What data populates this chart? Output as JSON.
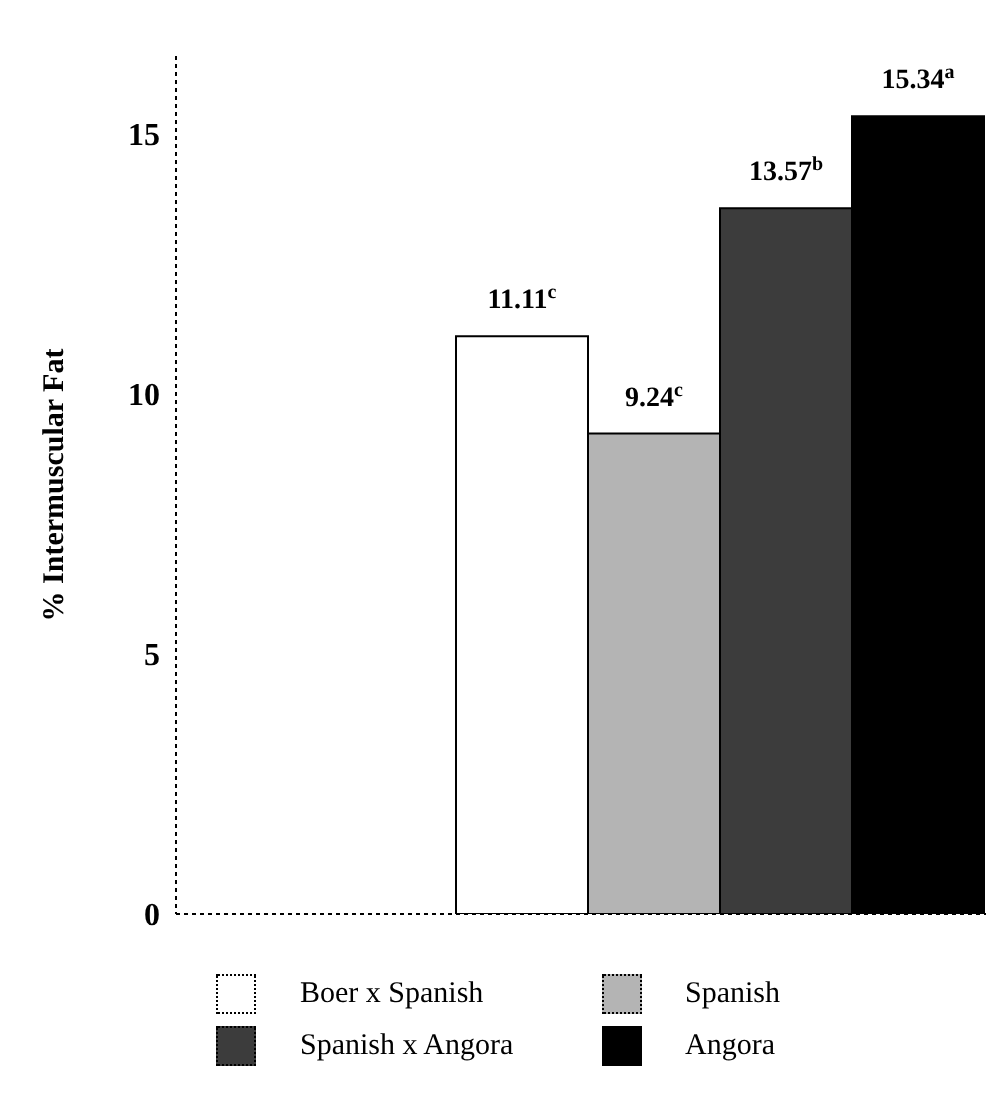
{
  "chart_data": {
    "type": "bar",
    "ylabel": "% Intermuscular Fat",
    "categories": [
      null
    ],
    "ylim": [
      0,
      16.5
    ],
    "yticks": [
      0,
      5,
      10,
      15
    ],
    "legend": "bottom",
    "series": [
      {
        "name": "Boer x Spanish",
        "color": "#ffffff",
        "values": [
          11.11
        ],
        "value_labels": [
          "11.11$^{c}$"
        ]
      },
      {
        "name": "Spanish",
        "color": "#b4b4b4",
        "values": [
          9.24
        ],
        "value_labels": [
          "9.24$^{c}$"
        ]
      },
      {
        "name": "Spanish x Angora",
        "color": "#3c3c3c",
        "values": [
          13.57
        ],
        "value_labels": [
          "13.57$^{b}$"
        ]
      },
      {
        "name": "Angora",
        "color": "#000000",
        "values": [
          15.34
        ],
        "value_labels": [
          "15.34$^{a}$"
        ]
      }
    ]
  }
}
